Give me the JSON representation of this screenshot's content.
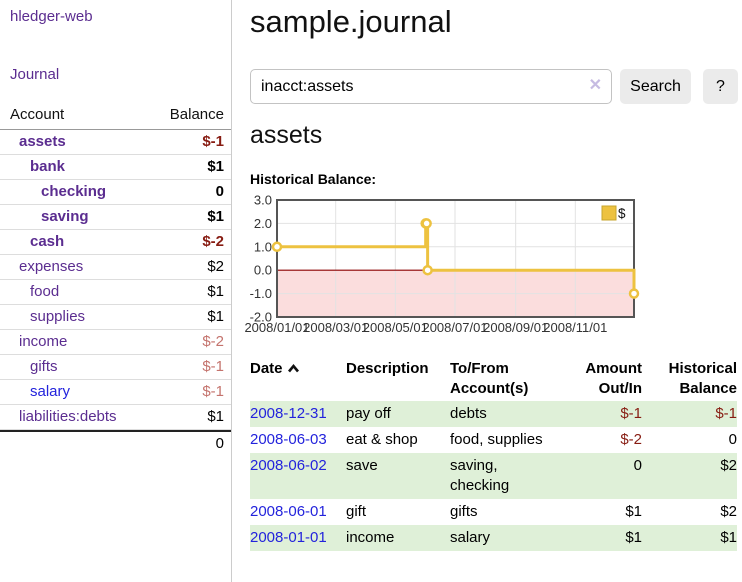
{
  "colors": {
    "link_purple": "#5b2d90",
    "link_blue": "#2323dc",
    "negative_strong": "#871c12",
    "negative_light": "#c4736d",
    "row_stripe_green": "#dff0d8",
    "series_gold": "#edc240",
    "chart_negative_region": "#fbdddd",
    "chart_zero_line": "#8b0000",
    "chart_grid": "#e2e2e2",
    "chart_border": "#555555"
  },
  "sidebar": {
    "app_title": "hledger-web",
    "journal_link": "Journal",
    "accounts_table": {
      "col_account": "Account",
      "col_balance": "Balance",
      "rows": [
        {
          "name": "assets",
          "depth": 1,
          "emph": true,
          "balance": "$-1",
          "neg": "strong"
        },
        {
          "name": "bank",
          "depth": 2,
          "emph": true,
          "balance": "$1",
          "neg": "none"
        },
        {
          "name": "checking",
          "depth": 3,
          "emph": true,
          "balance": "0",
          "neg": "none"
        },
        {
          "name": "saving",
          "depth": 3,
          "emph": true,
          "balance": "$1",
          "neg": "none"
        },
        {
          "name": "cash",
          "depth": 2,
          "emph": true,
          "balance": "$-2",
          "neg": "strong"
        },
        {
          "name": "expenses",
          "depth": 1,
          "emph": false,
          "balance": "$2",
          "neg": "none"
        },
        {
          "name": "food",
          "depth": 2,
          "emph": false,
          "balance": "$1",
          "neg": "none"
        },
        {
          "name": "supplies",
          "depth": 2,
          "emph": false,
          "balance": "$1",
          "neg": "none"
        },
        {
          "name": "income",
          "depth": 1,
          "emph": false,
          "balance": "$-2",
          "neg": "light"
        },
        {
          "name": "gifts",
          "depth": 2,
          "emph": false,
          "balance": "$-1",
          "neg": "light"
        },
        {
          "name": "salary",
          "depth": 2,
          "emph": false,
          "balance": "$-1",
          "neg": "light",
          "link_color": "blue"
        },
        {
          "name": "liabilities:debts",
          "depth": 1,
          "emph": false,
          "balance": "$1",
          "neg": "none"
        }
      ],
      "total": "0"
    }
  },
  "header": {
    "title": "sample.journal",
    "search": {
      "value": "inacct:assets",
      "clear_icon": "✕",
      "button": "Search",
      "help_button": "?"
    }
  },
  "main": {
    "account_heading": "assets",
    "chart_label": "Historical Balance:"
  },
  "chart_data": {
    "type": "line",
    "step": true,
    "title": "Historical Balance:",
    "legend": {
      "label": "$",
      "position": "top-right"
    },
    "ylim": [
      -2,
      3
    ],
    "y_ticks": [
      "3.0",
      "2.0",
      "1.0",
      "0.0",
      "-1.0",
      "-2.0"
    ],
    "x_range_days": [
      0,
      365
    ],
    "x_ticks": [
      {
        "day": 0,
        "label": "2008/01/01"
      },
      {
        "day": 60,
        "label": "2008/03/01"
      },
      {
        "day": 121,
        "label": "2008/05/01"
      },
      {
        "day": 182,
        "label": "2008/07/01"
      },
      {
        "day": 244,
        "label": "2008/09/01"
      },
      {
        "day": 305,
        "label": "2008/11/01"
      }
    ],
    "grid": true,
    "zero_line": true,
    "negative_region_below": 0,
    "series": [
      {
        "name": "$",
        "color": "#edc240",
        "points": [
          {
            "date": "2008-01-01",
            "day": 0,
            "y": 1
          },
          {
            "date": "2008-06-01",
            "day": 152,
            "y": 2
          },
          {
            "date": "2008-06-02",
            "day": 153,
            "y": 2
          },
          {
            "date": "2008-06-03",
            "day": 154,
            "y": 0
          },
          {
            "date": "2008-12-31",
            "day": 365,
            "y": -1
          }
        ]
      }
    ]
  },
  "register_table": {
    "headers": {
      "date": "Date",
      "description": "Description",
      "tofrom": "To/From Account(s)",
      "amount": "Amount Out/In",
      "balance": "Historical Balance"
    },
    "sort": {
      "column": "date",
      "direction": "ascending"
    },
    "rows": [
      {
        "date": "2008-12-31",
        "description": "pay off",
        "tofrom": "debts",
        "amount": "$-1",
        "balance": "$-1",
        "amount_neg": true,
        "balance_neg": true
      },
      {
        "date": "2008-06-03",
        "description": "eat & shop",
        "tofrom": "food, supplies",
        "amount": "$-2",
        "balance": "0",
        "amount_neg": true,
        "balance_neg": false
      },
      {
        "date": "2008-06-02",
        "description": "save",
        "tofrom": "saving, checking",
        "amount": "0",
        "balance": "$2",
        "amount_neg": false,
        "balance_neg": false
      },
      {
        "date": "2008-06-01",
        "description": "gift",
        "tofrom": "gifts",
        "amount": "$1",
        "balance": "$2",
        "amount_neg": false,
        "balance_neg": false
      },
      {
        "date": "2008-01-01",
        "description": "income",
        "tofrom": "salary",
        "amount": "$1",
        "balance": "$1",
        "amount_neg": false,
        "balance_neg": false
      }
    ]
  }
}
